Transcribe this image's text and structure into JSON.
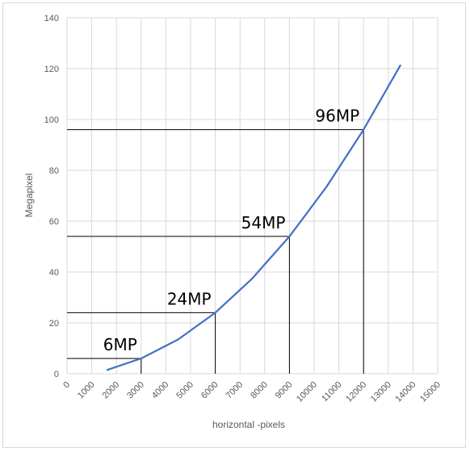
{
  "chart_data": {
    "type": "line",
    "xlabel": "horizontal -pixels",
    "ylabel": "Megapixel",
    "xlim": [
      0,
      15000
    ],
    "ylim": [
      0,
      140
    ],
    "x_ticks": [
      "0",
      "1000",
      "2000",
      "3000",
      "4000",
      "5000",
      "6000",
      "7000",
      "8000",
      "9000",
      "10000",
      "11000",
      "12000",
      "13000",
      "14000",
      "15000"
    ],
    "y_ticks": [
      "0",
      "20",
      "40",
      "60",
      "80",
      "100",
      "120",
      "140"
    ],
    "grid": true,
    "legend": "none",
    "line_color": "#4472c4",
    "series": [
      {
        "x": [
          1600,
          3000,
          4500,
          6000,
          7500,
          9000,
          10500,
          12000,
          13500
        ],
        "y": [
          1.4,
          6,
          13.5,
          24,
          37.5,
          54,
          73.5,
          96,
          121.5
        ]
      }
    ],
    "annotations": [
      {
        "label": "6MP",
        "x": 3000,
        "y": 6
      },
      {
        "label": "24MP",
        "x": 6000,
        "y": 24
      },
      {
        "label": "54MP",
        "x": 9000,
        "y": 54
      },
      {
        "label": "96MP",
        "x": 12000,
        "y": 96
      }
    ]
  }
}
